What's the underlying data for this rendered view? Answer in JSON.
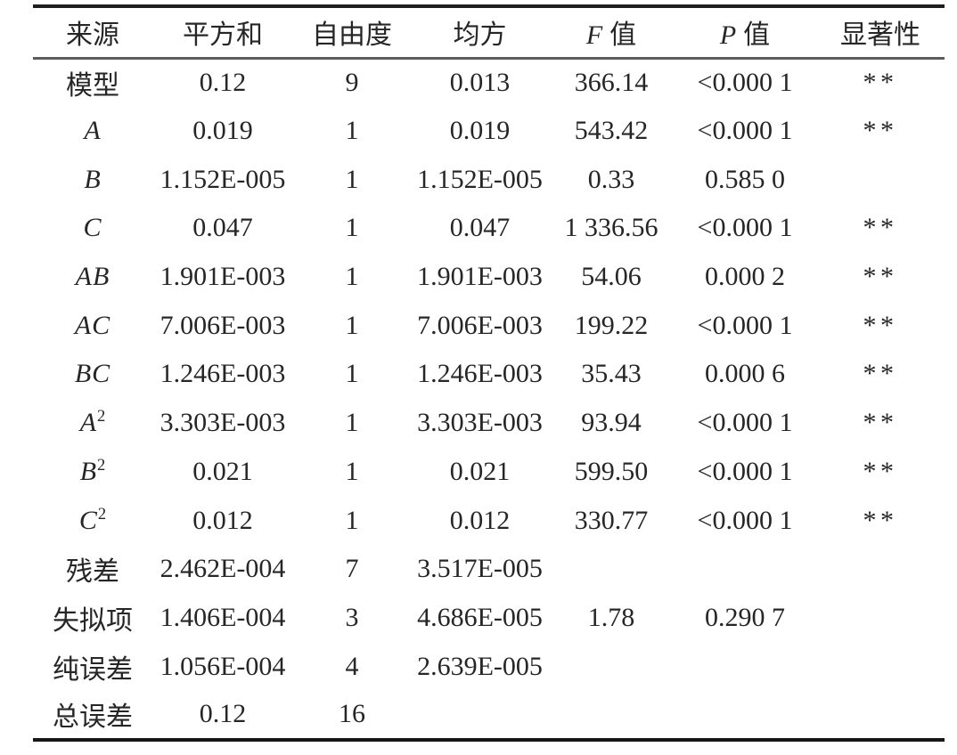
{
  "table": {
    "columns": [
      {
        "label": "来源"
      },
      {
        "label": "平方和"
      },
      {
        "label": "自由度"
      },
      {
        "label": "均方"
      },
      {
        "italic": "F",
        "label": "值"
      },
      {
        "italic": "P",
        "label": "值"
      },
      {
        "label": "显著性"
      }
    ],
    "rows": [
      {
        "src": "模型",
        "src_cls": "src",
        "ss": "0.12",
        "df": "9",
        "ms": "0.013",
        "f": "366.14",
        "p": "<0.000 1",
        "sig": "**"
      },
      {
        "src": "A",
        "src_cls": "src italic",
        "ss": "0.019",
        "df": "1",
        "ms": "0.019",
        "f": "543.42",
        "p": "<0.000 1",
        "sig": "**"
      },
      {
        "src": "B",
        "src_cls": "src italic",
        "ss": "1.152E-005",
        "df": "1",
        "ms": "1.152E-005",
        "f": "0.33",
        "p": "0.585 0",
        "sig": ""
      },
      {
        "src": "C",
        "src_cls": "src italic",
        "ss": "0.047",
        "df": "1",
        "ms": "0.047",
        "f": "1 336.56",
        "p": "<0.000 1",
        "sig": "**"
      },
      {
        "src": "AB",
        "src_cls": "src italic",
        "ss": "1.901E-003",
        "df": "1",
        "ms": "1.901E-003",
        "f": "54.06",
        "p": "0.000 2",
        "sig": "**"
      },
      {
        "src": "AC",
        "src_cls": "src italic",
        "ss": "7.006E-003",
        "df": "1",
        "ms": "7.006E-003",
        "f": "199.22",
        "p": "<0.000 1",
        "sig": "**"
      },
      {
        "src": "BC",
        "src_cls": "src italic",
        "ss": "1.246E-003",
        "df": "1",
        "ms": "1.246E-003",
        "f": "35.43",
        "p": "0.000 6",
        "sig": "**"
      },
      {
        "src": "A",
        "sup": "2",
        "src_cls": "src italic",
        "ss": "3.303E-003",
        "df": "1",
        "ms": "3.303E-003",
        "f": "93.94",
        "p": "<0.000 1",
        "sig": "**"
      },
      {
        "src": "B",
        "sup": "2",
        "src_cls": "src italic",
        "ss": "0.021",
        "df": "1",
        "ms": "0.021",
        "f": "599.50",
        "p": "<0.000 1",
        "sig": "**"
      },
      {
        "src": "C",
        "sup": "2",
        "src_cls": "src italic",
        "ss": "0.012",
        "df": "1",
        "ms": "0.012",
        "f": "330.77",
        "p": "<0.000 1",
        "sig": "**"
      },
      {
        "src": "残差",
        "src_cls": "src",
        "ss": "2.462E-004",
        "df": "7",
        "ms": "3.517E-005",
        "f": "",
        "p": "",
        "sig": ""
      },
      {
        "src": "失拟项",
        "src_cls": "src",
        "ss": "1.406E-004",
        "df": "3",
        "ms": "4.686E-005",
        "f": "1.78",
        "p": "0.290 7",
        "sig": ""
      },
      {
        "src": "纯误差",
        "src_cls": "src",
        "ss": "1.056E-004",
        "df": "4",
        "ms": "2.639E-005",
        "f": "",
        "p": "",
        "sig": ""
      },
      {
        "src": "总误差",
        "src_cls": "src",
        "ss": "0.12",
        "df": "16",
        "ms": "",
        "f": "",
        "p": "",
        "sig": ""
      }
    ]
  },
  "colors": {
    "text": "#262626",
    "rule_heavy": "#1f1f1f",
    "rule_light": "#5c5c5c",
    "background": "#ffffff"
  }
}
